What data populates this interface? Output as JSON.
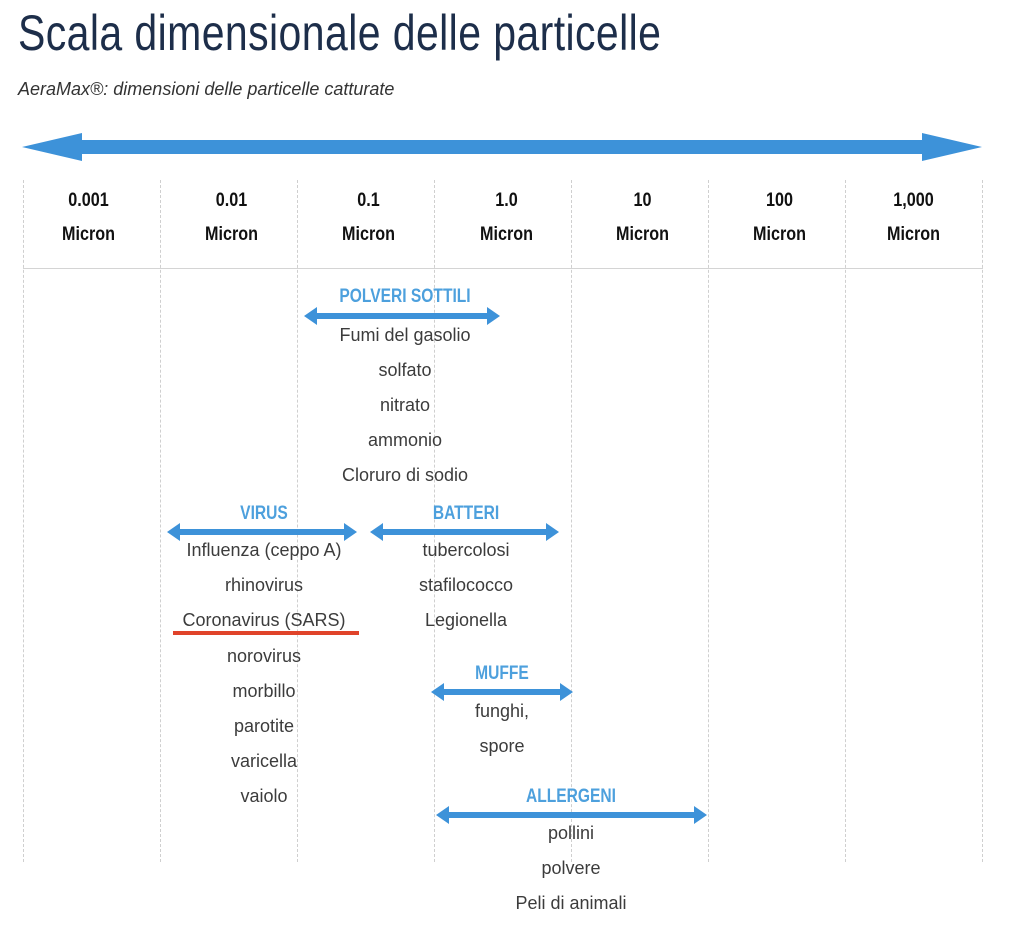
{
  "title": "Scala dimensionale delle particelle",
  "subtitle": "AeraMax®: dimensioni delle particelle catturate",
  "colors": {
    "title": "#1d2e4a",
    "arrow": "#3d92d9",
    "category": "#4da0dd",
    "highlight": "#e0432a"
  },
  "scale": [
    {
      "value": "0.001",
      "unit": "Micron"
    },
    {
      "value": "0.01",
      "unit": "Micron"
    },
    {
      "value": "0.1",
      "unit": "Micron"
    },
    {
      "value": "1.0",
      "unit": "Micron"
    },
    {
      "value": "10",
      "unit": "Micron"
    },
    {
      "value": "100",
      "unit": "Micron"
    },
    {
      "value": "1,000",
      "unit": "Micron"
    }
  ],
  "categories": {
    "polveri": {
      "label": "POLVERI SOTTILI",
      "items": [
        "Fumi del gasolio",
        "solfato",
        "nitrato",
        "ammonio",
        "Cloruro di sodio"
      ]
    },
    "virus": {
      "label": "VIRUS",
      "items": [
        "Influenza (ceppo A)",
        "rhinovirus",
        "Coronavirus (SARS)",
        "norovirus",
        "morbillo",
        "parotite",
        "varicella",
        "vaiolo"
      ]
    },
    "batteri": {
      "label": "BATTERI",
      "items": [
        "tubercolosi",
        "stafilococco",
        "Legionella"
      ]
    },
    "muffe": {
      "label": "MUFFE",
      "items": [
        "funghi,",
        "spore"
      ]
    },
    "allergeni": {
      "label": "ALLERGENI",
      "items": [
        "pollini",
        "polvere",
        "Peli di animali"
      ]
    }
  },
  "highlighted_item": "Coronavirus (SARS)"
}
